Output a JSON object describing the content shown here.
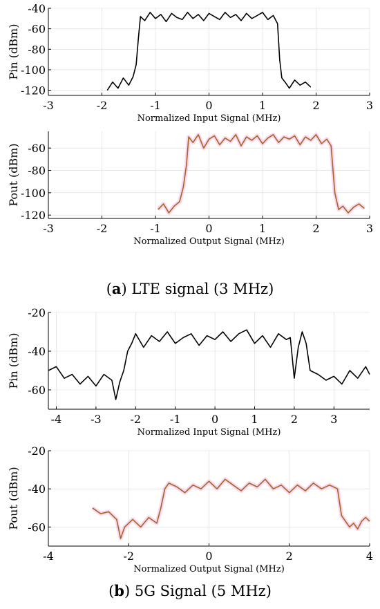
{
  "captions": {
    "a": {
      "letter": "a",
      "text": "LTE signal (3 MHz)"
    },
    "b": {
      "letter": "b",
      "text": "5G Signal (5 MHz)"
    }
  },
  "colors": {
    "input_trace": "#000000",
    "output_trace": "#a8641e",
    "output_glow": "#f2b8e6",
    "grid": "#d9d9d9"
  },
  "chart_data": [
    {
      "id": "lte-input",
      "type": "line",
      "xlabel": "Normalized Input Signal (MHz)",
      "ylabel": "Pin (dBm)",
      "xlim": [
        -3,
        3
      ],
      "ylim": [
        -125,
        -40
      ],
      "xticks": [
        "-3",
        "-2",
        "-1",
        "0",
        "1",
        "2",
        "3"
      ],
      "yticks": [
        "-40",
        "-60",
        "-80",
        "-100",
        "-120"
      ],
      "grid": true,
      "series": [
        {
          "color": "#000000",
          "x": [
            -1.9,
            -1.8,
            -1.7,
            -1.6,
            -1.5,
            -1.42,
            -1.36,
            -1.32,
            -1.28,
            -1.2,
            -1.1,
            -1.0,
            -0.9,
            -0.8,
            -0.7,
            -0.6,
            -0.5,
            -0.4,
            -0.3,
            -0.2,
            -0.1,
            0.0,
            0.1,
            0.2,
            0.3,
            0.4,
            0.5,
            0.6,
            0.7,
            0.8,
            0.9,
            1.0,
            1.1,
            1.2,
            1.28,
            1.32,
            1.36,
            1.42,
            1.5,
            1.6,
            1.7,
            1.8,
            1.9
          ],
          "y": [
            -120,
            -112,
            -118,
            -108,
            -115,
            -107,
            -95,
            -70,
            -48,
            -52,
            -44,
            -50,
            -46,
            -53,
            -45,
            -49,
            -51,
            -44,
            -50,
            -46,
            -52,
            -45,
            -48,
            -51,
            -44,
            -49,
            -46,
            -52,
            -45,
            -50,
            -47,
            -44,
            -51,
            -47,
            -55,
            -90,
            -108,
            -112,
            -118,
            -110,
            -115,
            -112,
            -117
          ]
        }
      ]
    },
    {
      "id": "lte-output",
      "type": "line",
      "xlabel": "Normalized Output Signal (MHz)",
      "ylabel": "Pout (dBm)",
      "xlim": [
        -3,
        3
      ],
      "ylim": [
        -123,
        -45
      ],
      "xticks": [
        "-3",
        "-2",
        "-1",
        "0",
        "1",
        "2",
        "3"
      ],
      "yticks": [
        "-60",
        "-80",
        "-100",
        "-120"
      ],
      "grid": true,
      "series": [
        {
          "color": "#a8641e",
          "x": [
            -0.95,
            -0.85,
            -0.75,
            -0.65,
            -0.55,
            -0.48,
            -0.42,
            -0.38,
            -0.3,
            -0.2,
            -0.1,
            0.0,
            0.1,
            0.2,
            0.3,
            0.4,
            0.5,
            0.6,
            0.7,
            0.8,
            0.9,
            1.0,
            1.1,
            1.2,
            1.3,
            1.4,
            1.5,
            1.6,
            1.7,
            1.8,
            1.9,
            2.0,
            2.1,
            2.2,
            2.28,
            2.35,
            2.42,
            2.5,
            2.6,
            2.7,
            2.8,
            2.9
          ],
          "y": [
            -115,
            -110,
            -118,
            -112,
            -108,
            -95,
            -75,
            -50,
            -55,
            -48,
            -60,
            -52,
            -49,
            -57,
            -51,
            -54,
            -48,
            -58,
            -50,
            -53,
            -49,
            -56,
            -51,
            -48,
            -55,
            -50,
            -52,
            -49,
            -57,
            -50,
            -53,
            -48,
            -56,
            -52,
            -58,
            -100,
            -115,
            -112,
            -118,
            -113,
            -110,
            -114
          ]
        }
      ]
    },
    {
      "id": "5g-input",
      "type": "line",
      "xlabel": "Normalized Input Signal (MHz)",
      "ylabel": "Pin (dBm)",
      "xlim": [
        -4.2,
        3.9
      ],
      "ylim": [
        -70,
        -20
      ],
      "xticks": [
        "-4",
        "-3",
        "-2",
        "-1",
        "0",
        "1",
        "2",
        "3"
      ],
      "yticks": [
        "-20",
        "-40",
        "-60"
      ],
      "grid": true,
      "series": [
        {
          "color": "#000000",
          "x": [
            -4.2,
            -4.0,
            -3.8,
            -3.6,
            -3.4,
            -3.2,
            -3.0,
            -2.8,
            -2.6,
            -2.5,
            -2.4,
            -2.3,
            -2.2,
            -2.1,
            -2.0,
            -1.8,
            -1.6,
            -1.4,
            -1.2,
            -1.0,
            -0.8,
            -0.6,
            -0.4,
            -0.2,
            0.0,
            0.2,
            0.4,
            0.6,
            0.8,
            1.0,
            1.2,
            1.4,
            1.6,
            1.8,
            1.9,
            2.0,
            2.1,
            2.2,
            2.3,
            2.4,
            2.6,
            2.8,
            3.0,
            3.2,
            3.4,
            3.6,
            3.8,
            3.9
          ],
          "y": [
            -50,
            -48,
            -54,
            -52,
            -57,
            -53,
            -58,
            -52,
            -55,
            -65,
            -56,
            -50,
            -40,
            -36,
            -31,
            -38,
            -32,
            -35,
            -30,
            -36,
            -33,
            -31,
            -37,
            -32,
            -34,
            -30,
            -35,
            -31,
            -29,
            -36,
            -32,
            -38,
            -31,
            -34,
            -33,
            -54,
            -38,
            -30,
            -36,
            -50,
            -52,
            -55,
            -53,
            -57,
            -50,
            -54,
            -48,
            -52
          ]
        }
      ]
    },
    {
      "id": "5g-output",
      "type": "line",
      "xlabel": "Normalized Output Signal (MHz)",
      "ylabel": "Pout (dBm)",
      "xlim": [
        -4,
        4
      ],
      "ylim": [
        -70,
        -20
      ],
      "xticks": [
        "-4",
        "-2",
        "0",
        "2",
        "4"
      ],
      "yticks": [
        "-20",
        "-40",
        "-60"
      ],
      "grid": true,
      "series": [
        {
          "color": "#a8641e",
          "x": [
            -2.9,
            -2.7,
            -2.5,
            -2.3,
            -2.2,
            -2.1,
            -1.9,
            -1.7,
            -1.5,
            -1.3,
            -1.2,
            -1.1,
            -1.0,
            -0.8,
            -0.6,
            -0.4,
            -0.2,
            0.0,
            0.2,
            0.4,
            0.6,
            0.8,
            1.0,
            1.2,
            1.4,
            1.6,
            1.8,
            2.0,
            2.2,
            2.4,
            2.6,
            2.8,
            3.0,
            3.1,
            3.2,
            3.3,
            3.4,
            3.5,
            3.6,
            3.7,
            3.8,
            3.9,
            4.0
          ],
          "y": [
            -50,
            -53,
            -52,
            -56,
            -66,
            -60,
            -56,
            -60,
            -55,
            -58,
            -50,
            -40,
            -37,
            -39,
            -42,
            -38,
            -40,
            -36,
            -40,
            -35,
            -38,
            -41,
            -37,
            -39,
            -35,
            -40,
            -38,
            -42,
            -38,
            -41,
            -37,
            -40,
            -38,
            -39,
            -40,
            -54,
            -57,
            -60,
            -58,
            -61,
            -57,
            -55,
            -57
          ]
        }
      ]
    }
  ]
}
